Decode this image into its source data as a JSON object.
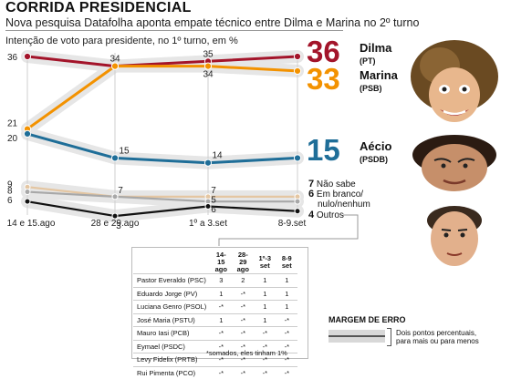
{
  "header": {
    "title": "CORRIDA PRESIDENCIAL",
    "subtitle": "Nova pesquisa Datafolha aponta empate técnico entre Dilma e Marina no 2º turno",
    "chart_caption": "Intenção de voto para presidente, no 1º turno, em %"
  },
  "chart_data": {
    "type": "line",
    "title": "Intenção de voto para presidente, no 1º turno, em %",
    "categories": [
      "14 e 15.ago",
      "28 e 29.ago",
      "1º a 3.set",
      "8-9.set"
    ],
    "series": [
      {
        "name": "Dilma (PT)",
        "values": [
          36,
          34,
          35,
          36
        ],
        "labels": [
          "36",
          "34",
          "35",
          ""
        ],
        "color": "#a3142a"
      },
      {
        "name": "Marina (PSB)",
        "values": [
          21,
          34,
          34,
          33
        ],
        "labels": [
          "21",
          "",
          "34",
          ""
        ],
        "color": "#f39200"
      },
      {
        "name": "Aécio (PSDB)",
        "values": [
          20,
          15,
          14,
          15
        ],
        "labels": [
          "20",
          "15",
          "14",
          ""
        ],
        "color": "#1f6e98"
      },
      {
        "name": "Não sabe",
        "values": [
          9,
          7,
          7,
          7
        ],
        "labels": [
          "9",
          "7",
          "7",
          ""
        ],
        "color": "#e4c6a2"
      },
      {
        "name": "Em branco/nulo/nenhum",
        "values": [
          8,
          7,
          6,
          6
        ],
        "labels": [
          "8",
          "",
          "6",
          ""
        ],
        "color": "#a8a8a8"
      },
      {
        "name": "Outros",
        "values": [
          6,
          3,
          5,
          4
        ],
        "labels": [
          "6",
          "3",
          "5",
          ""
        ],
        "color": "#111111"
      }
    ],
    "legend": "right"
  },
  "legend": {
    "dilma": {
      "value": "36",
      "name": "Dilma",
      "party": "(PT)",
      "color": "#a3142a"
    },
    "marina": {
      "value": "33",
      "name": "Marina",
      "party": "(PSB)",
      "color": "#f39200"
    },
    "aecio": {
      "value": "15",
      "name": "Aécio",
      "party": "(PSDB)",
      "color": "#1f6e98"
    },
    "nao_sabe": {
      "value": "7",
      "name": "Não sabe"
    },
    "branco": {
      "value": "6",
      "name": "Em branco/",
      "name2": "nulo/nenhum"
    },
    "outros": {
      "value": "4",
      "name": "Outros"
    }
  },
  "table": {
    "headers": [
      "14-15 ago",
      "28-29 ago",
      "1º-3 set",
      "8-9 set"
    ],
    "rows": [
      {
        "name": "Pastor Everaldo (PSC)",
        "values": [
          "3",
          "2",
          "1",
          "1"
        ]
      },
      {
        "name": "Eduardo Jorge (PV)",
        "values": [
          "1",
          "-*",
          "1",
          "1"
        ]
      },
      {
        "name": "Luciana Genro (PSOL)",
        "values": [
          "-*",
          "-*",
          "1",
          "1"
        ]
      },
      {
        "name": "José Maria (PSTU)",
        "values": [
          "1",
          "-*",
          "1",
          "-*"
        ]
      },
      {
        "name": "Mauro Iasi (PCB)",
        "values": [
          "-*",
          "-*",
          "-*",
          "-*"
        ]
      },
      {
        "name": "Eymael (PSDC)",
        "values": [
          "-*",
          "-*",
          "-*",
          "-*"
        ]
      },
      {
        "name": "Levy Fidelix (PRTB)",
        "values": [
          "-*",
          "-*",
          "-*",
          "-*"
        ]
      },
      {
        "name": "Rui Pimenta (PCO)",
        "values": [
          "-*",
          "-*",
          "-*",
          "-*"
        ]
      }
    ],
    "footnote": "*somados, eles tinham 1%"
  },
  "margin": {
    "title": "MARGEM DE ERRO",
    "text1": "Dois pontos percentuais,",
    "text2": "para mais ou para menos"
  }
}
